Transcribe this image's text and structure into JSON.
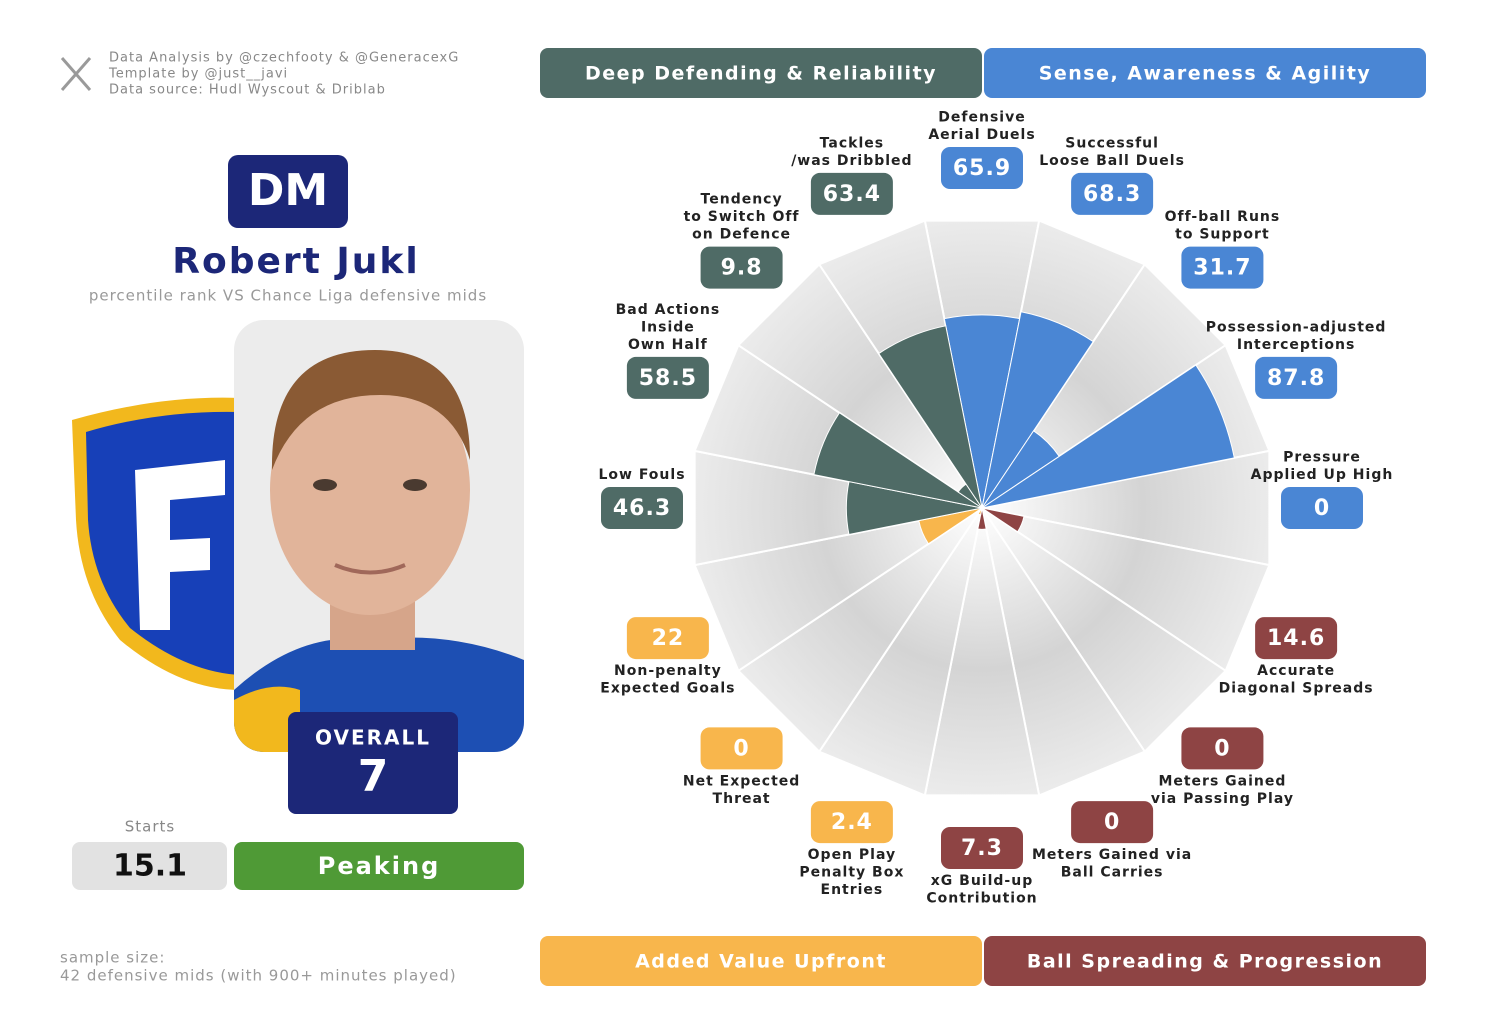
{
  "credits": [
    "Data Analysis by @czechfooty & @GeneracexG",
    "Template by @just__javi",
    "Data source: Hudl Wyscout & Driblab"
  ],
  "position": "DM",
  "player": "Robert Jukl",
  "subtitle": "percentile rank VS Chance Liga defensive mids",
  "overall_label": "OVERALL",
  "overall_value": 7,
  "starts_label": "Starts",
  "starts_value": 15.1,
  "status": "Peaking",
  "sample_size": [
    "sample size:",
    "42 defensive mids (with 900+ minutes played)"
  ],
  "chart_data": {
    "type": "pizza",
    "ylim": [
      0,
      100
    ],
    "series": [
      {
        "name": "Sense, Awareness & Agility",
        "color": "#4a86d4",
        "categories": [
          [
            "Defensive",
            "Aerial Duels"
          ],
          [
            "Successful",
            "Loose Ball Duels"
          ],
          [
            "Off-ball Runs",
            "to Support"
          ],
          [
            "Possession-adjusted",
            "Interceptions"
          ],
          [
            "Pressure",
            "Applied Up High"
          ]
        ],
        "values": [
          65.9,
          68.3,
          31.7,
          87.8,
          0
        ]
      },
      {
        "name": "Ball Spreading & Progression",
        "color": "#8e4444",
        "categories": [
          [
            "Accurate",
            "Diagonal Spreads"
          ],
          [
            "Meters Gained",
            "via Passing Play"
          ],
          [
            "Meters Gained via",
            "Ball Carries"
          ],
          [
            "xG Build-up",
            "Contribution"
          ]
        ],
        "values": [
          14.6,
          0,
          0,
          7.3
        ]
      },
      {
        "name": "Added Value Upfront",
        "color": "#f8b64c",
        "categories": [
          [
            "Open Play",
            "Penalty Box",
            "Entries"
          ],
          [
            "Net Expected",
            "Threat"
          ],
          [
            "Non-penalty",
            "Expected Goals"
          ]
        ],
        "values": [
          2.4,
          0,
          22
        ]
      },
      {
        "name": "Deep Defending & Reliability",
        "color": "#4f6b66",
        "categories": [
          [
            "Low Fouls"
          ],
          [
            "Bad Actions",
            "Inside",
            "Own Half"
          ],
          [
            "Tendency",
            "to Switch Off",
            "on Defence"
          ],
          [
            "Tackles",
            "/was Dribbled"
          ]
        ],
        "values": [
          46.3,
          58.5,
          9.8,
          63.4
        ]
      }
    ]
  }
}
